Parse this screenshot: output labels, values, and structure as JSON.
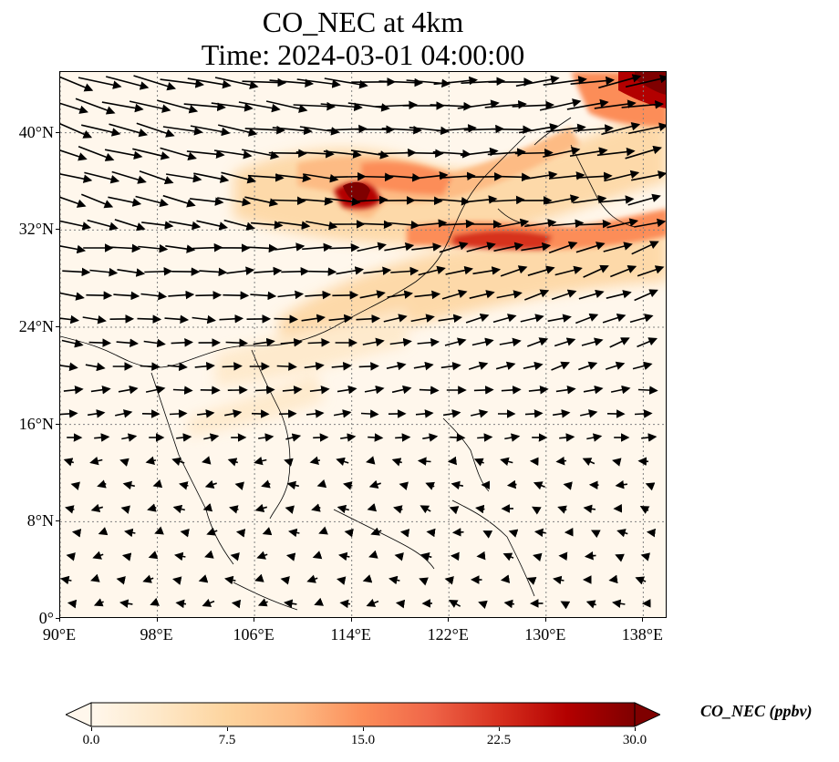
{
  "title": {
    "line1": "CO_NEC at 4km",
    "line2": "Time: 2024-03-01 04:00:00"
  },
  "map": {
    "projection": "PlateCarree",
    "extent": {
      "lon_min": 90,
      "lon_max": 140,
      "lat_min": 0,
      "lat_max": 45
    },
    "gridlines": "dotted",
    "lat_ticks": [
      {
        "value": 40,
        "label": "40°N"
      },
      {
        "value": 32,
        "label": "32°N"
      },
      {
        "value": 24,
        "label": "24°N"
      },
      {
        "value": 16,
        "label": "16°N"
      },
      {
        "value": 8,
        "label": "8°N"
      },
      {
        "value": 0,
        "label": "0°"
      }
    ],
    "lon_ticks": [
      {
        "value": 90,
        "label": "90°E"
      },
      {
        "value": 98,
        "label": "98°E"
      },
      {
        "value": 106,
        "label": "106°E"
      },
      {
        "value": 114,
        "label": "114°E"
      },
      {
        "value": 122,
        "label": "122°E"
      },
      {
        "value": 130,
        "label": "130°E"
      },
      {
        "value": 138,
        "label": "138°E"
      }
    ],
    "field": "CO_NEC",
    "wind_vectors": "quiver"
  },
  "colorbar": {
    "label": "CO_NEC (ppbv)",
    "min": 0,
    "max": 30,
    "extend": "both",
    "colormap": "OrRd",
    "ticks": [
      {
        "value": 0,
        "label": "0.0"
      },
      {
        "value": 7.5,
        "label": "7.5"
      },
      {
        "value": 15,
        "label": "15.0"
      },
      {
        "value": 22.5,
        "label": "22.5"
      },
      {
        "value": 30,
        "label": "30.0"
      }
    ],
    "colors": [
      "#fff7ec",
      "#fee8c8",
      "#fdd49e",
      "#fdbb84",
      "#fc8d59",
      "#ef6548",
      "#d7301f",
      "#b30000",
      "#7f0000"
    ]
  }
}
